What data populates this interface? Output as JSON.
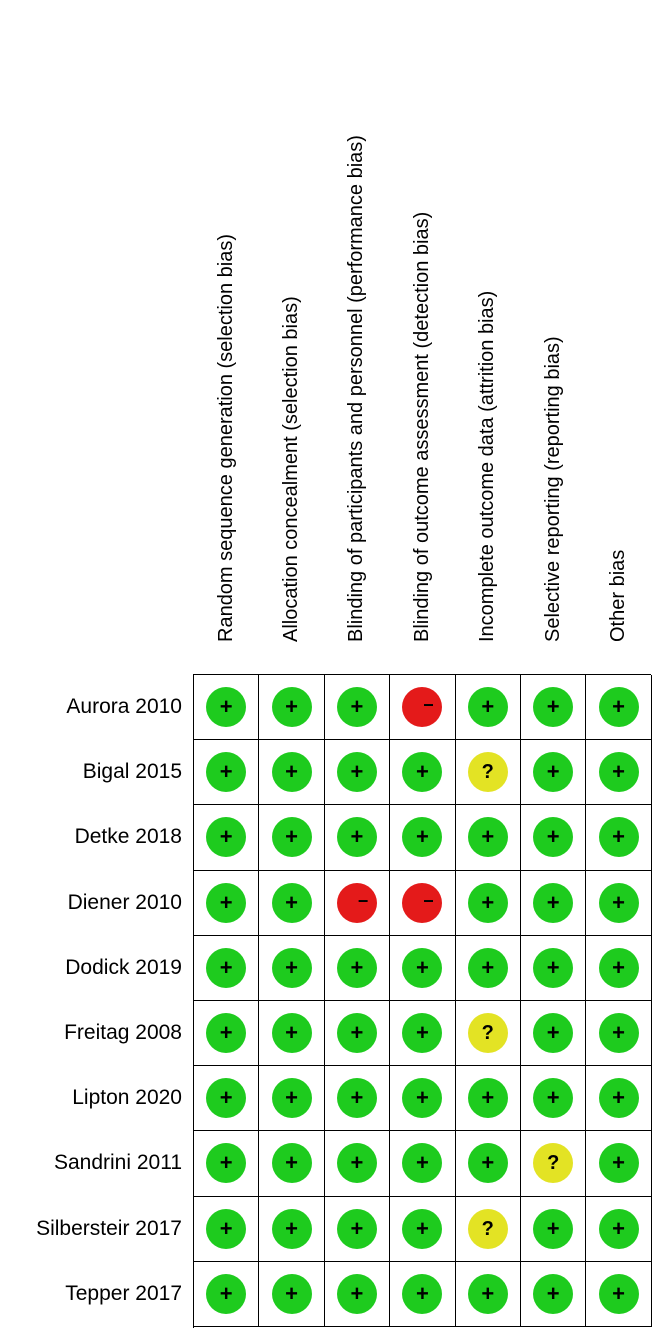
{
  "domains": [
    "Random sequence generation (selection bias)",
    "Allocation concealment (selection bias)",
    "Blinding of participants and personnel (performance bias)",
    "Blinding of outcome assessment (detection bias)",
    "Incomplete outcome data (attrition bias)",
    "Selective reporting (reporting bias)",
    "Other bias"
  ],
  "studies": [
    {
      "name": "Aurora 2010",
      "ratings": [
        "low",
        "low",
        "low",
        "high",
        "low",
        "low",
        "low"
      ]
    },
    {
      "name": "Bigal 2015",
      "ratings": [
        "low",
        "low",
        "low",
        "low",
        "unclear",
        "low",
        "low"
      ]
    },
    {
      "name": "Detke 2018",
      "ratings": [
        "low",
        "low",
        "low",
        "low",
        "low",
        "low",
        "low"
      ]
    },
    {
      "name": "Diener 2010",
      "ratings": [
        "low",
        "low",
        "high",
        "high",
        "low",
        "low",
        "low"
      ]
    },
    {
      "name": "Dodick 2019",
      "ratings": [
        "low",
        "low",
        "low",
        "low",
        "low",
        "low",
        "low"
      ]
    },
    {
      "name": "Freitag 2008",
      "ratings": [
        "low",
        "low",
        "low",
        "low",
        "unclear",
        "low",
        "low"
      ]
    },
    {
      "name": "Lipton 2020",
      "ratings": [
        "low",
        "low",
        "low",
        "low",
        "low",
        "low",
        "low"
      ]
    },
    {
      "name": "Sandrini 2011",
      "ratings": [
        "low",
        "low",
        "low",
        "low",
        "low",
        "unclear",
        "low"
      ]
    },
    {
      "name": "Silbersteir 2017",
      "ratings": [
        "low",
        "low",
        "low",
        "low",
        "unclear",
        "low",
        "low"
      ]
    },
    {
      "name": "Tepper 2017",
      "ratings": [
        "low",
        "low",
        "low",
        "low",
        "low",
        "low",
        "low"
      ]
    }
  ],
  "symbols": {
    "low": "+",
    "high": "−",
    "unclear": "?"
  },
  "colors": {
    "low": "#1ecb1e",
    "high": "#e41a1a",
    "unclear": "#e3e324"
  }
}
